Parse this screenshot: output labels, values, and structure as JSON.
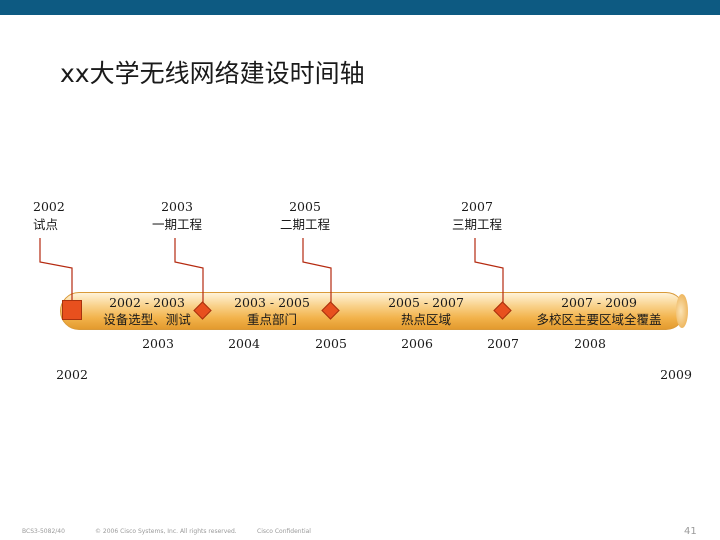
{
  "title": "xx大学无线网络建设时间轴",
  "milestones": [
    {
      "year": "2002",
      "label": "试点"
    },
    {
      "year": "2003",
      "label": "一期工程"
    },
    {
      "year": "2005",
      "label": "二期工程"
    },
    {
      "year": "2007",
      "label": "三期工程"
    }
  ],
  "segments": [
    {
      "range": "2002 - 2003",
      "label": "设备选型、测试"
    },
    {
      "range": "2003 - 2005",
      "label": "重点部门"
    },
    {
      "range": "2005 - 2007",
      "label": "热点区域"
    },
    {
      "range": "2007 - 2009",
      "label": "多校区主要区域全覆盖"
    }
  ],
  "axis_years": [
    "2003",
    "2004",
    "2005",
    "2006",
    "2007",
    "2008"
  ],
  "axis_start": "2002",
  "axis_end": "2009",
  "colors": {
    "marker": "#e8501e",
    "band": "#f2b24a",
    "header": "#0d5a82"
  },
  "footer": {
    "code": "BCS3-5082/40",
    "copyright": "© 2006 Cisco Systems, Inc. All rights reserved.",
    "confidential": "Cisco Confidential",
    "page": "41"
  }
}
